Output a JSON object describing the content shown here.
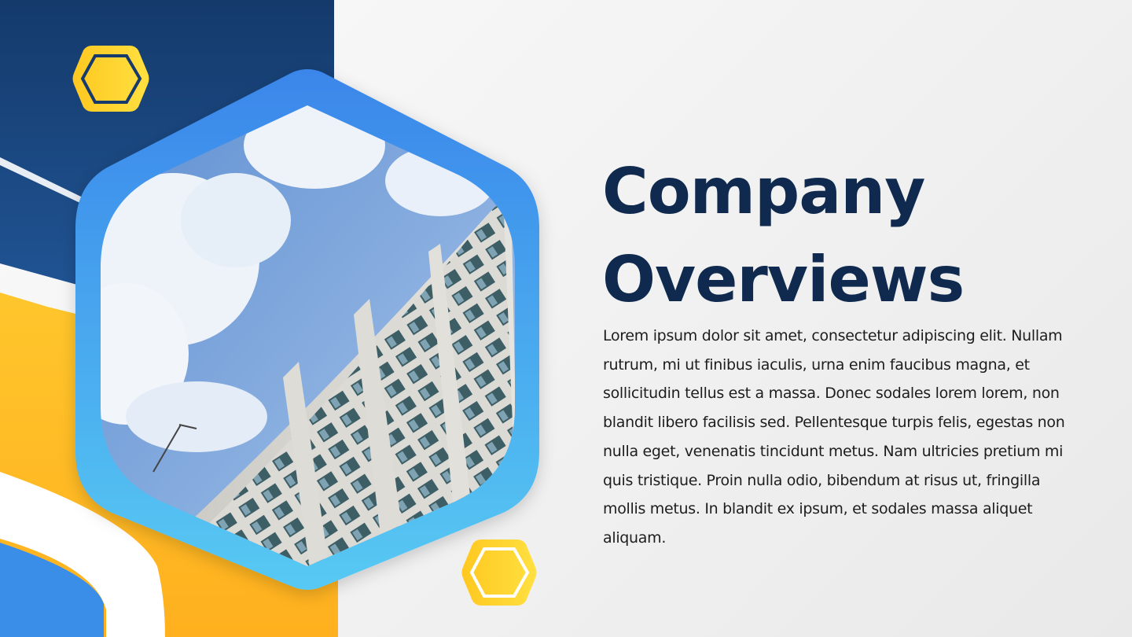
{
  "slide": {
    "title_lines": [
      "Company",
      "Overviews"
    ],
    "body": "Lorem ipsum dolor sit amet, consectetur adipiscing elit. Nullam rutrum, mi ut finibus iaculis, urna enim faucibus magna, et sollicitudin tellus est a massa. Donec sodales lorem lorem, non blandit libero facilisis sed. Pellentesque turpis felis, egestas non nulla eget, venenatis tincidunt metus. Nam ultricies pretium mi quis tristique. Proin nulla odio, bibendum at risus ut, fringilla mollis metus. In blandit ex ipsum, et sodales massa aliquet aliquam."
  },
  "theme": {
    "navy": "#0f2a4e",
    "dark_blue": "#1c4a82",
    "bright_blue": "#3a8ee8",
    "sky_blue": "#55c8f2",
    "yellow": "#ffd52a",
    "orange": "#ffb21e",
    "text": "#1d1d1d"
  },
  "image": {
    "subject": "skyscraper-photo"
  }
}
